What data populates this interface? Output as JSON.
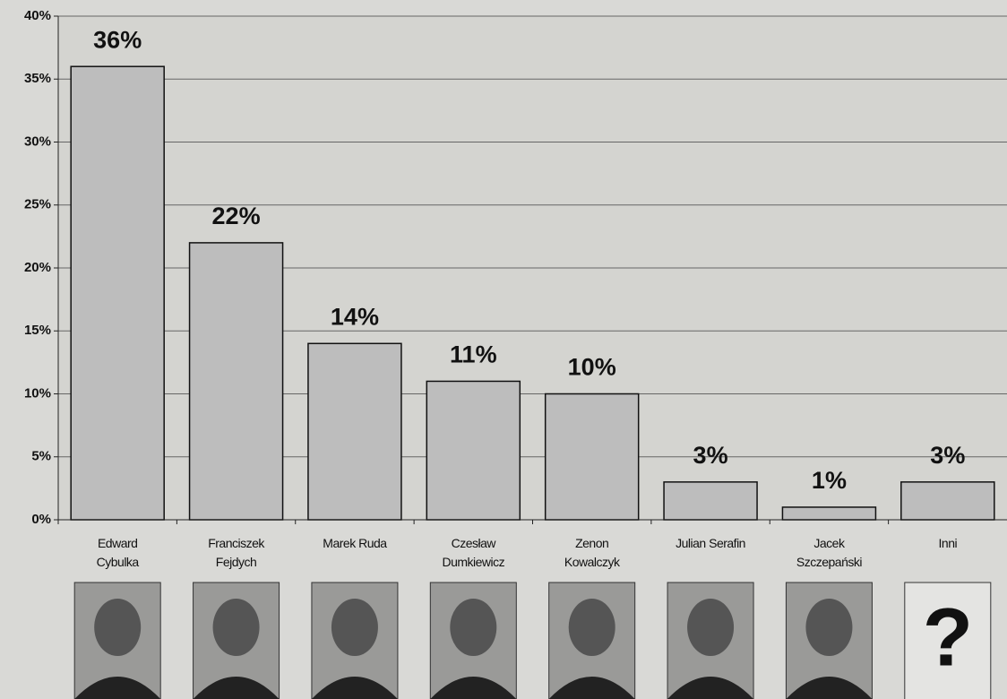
{
  "chart_data": {
    "type": "bar",
    "categories": [
      "Edward\nCybulka",
      "Franciszek\nFejdych",
      "Marek Ruda",
      "Czesław\nDumkiewicz",
      "Zenon\nKowalczyk",
      "Julian Serafin",
      "Jacek\nSzczepański",
      "Inni"
    ],
    "values": [
      36,
      22,
      14,
      11,
      10,
      3,
      1,
      3
    ],
    "value_labels": [
      "36%",
      "22%",
      "14%",
      "11%",
      "10%",
      "3%",
      "1%",
      "3%"
    ],
    "color": "#bdbdbd",
    "ylim": [
      0,
      40
    ],
    "yticks": [
      {
        "value": 0,
        "label": "0%"
      },
      {
        "value": 5,
        "label": "5%"
      },
      {
        "value": 10,
        "label": "10%"
      },
      {
        "value": 15,
        "label": "15%"
      },
      {
        "value": 20,
        "label": "20%"
      },
      {
        "value": 25,
        "label": "25%"
      },
      {
        "value": 30,
        "label": "30%"
      },
      {
        "value": 35,
        "label": "35%"
      },
      {
        "value": 40,
        "label": "40%"
      }
    ],
    "grid": true,
    "annotations": [
      "?"
    ]
  }
}
